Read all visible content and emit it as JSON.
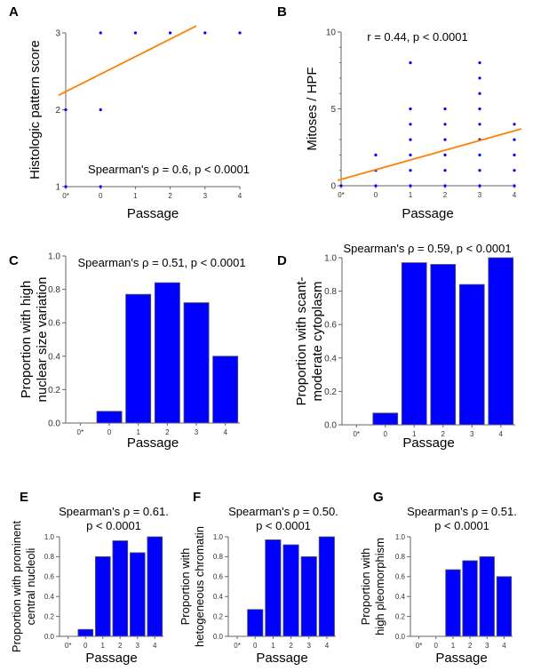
{
  "figure": {
    "colors": {
      "point": "#0000ff",
      "bar": "#0000ff",
      "bar_edge": "#555555",
      "fit": "#ff8000",
      "axis": "#666666"
    }
  },
  "chart_data": [
    {
      "panel": "A",
      "type": "scatter",
      "title": "",
      "xlabel": "Passage",
      "ylabel": "Histologic pattern score",
      "categories": [
        "0*",
        "0",
        "1",
        "2",
        "3",
        "4"
      ],
      "yticks": [
        "1",
        "2",
        "3"
      ],
      "ylim": [
        1,
        3
      ],
      "annotation": "Spearman's ρ = 0.6, p < 0.0001",
      "points": [
        {
          "x": "0*",
          "y": 1
        },
        {
          "x": "0*",
          "y": 2
        },
        {
          "x": "0",
          "y": 1
        },
        {
          "x": "0",
          "y": 2
        },
        {
          "x": "0",
          "y": 3
        },
        {
          "x": "1",
          "y": 3
        },
        {
          "x": "2",
          "y": 3
        },
        {
          "x": "3",
          "y": 3
        },
        {
          "x": "4",
          "y": 3
        }
      ],
      "fit_line": {
        "x0": -0.2,
        "y0": 2.19,
        "x1": 3.75,
        "y1": 3.09
      }
    },
    {
      "panel": "B",
      "type": "scatter",
      "title": "",
      "xlabel": "Passage",
      "ylabel": "Mitoses / HPF",
      "categories": [
        "0*",
        "0",
        "1",
        "2",
        "3",
        "4"
      ],
      "yticks": [
        "0",
        "5",
        "10"
      ],
      "ylim": [
        0,
        10
      ],
      "annotation": "r = 0.44, p < 0.0001",
      "points": [
        {
          "x": "0*",
          "y": 0
        },
        {
          "x": "0",
          "y": 0
        },
        {
          "x": "0",
          "y": 1
        },
        {
          "x": "0",
          "y": 2
        },
        {
          "x": "1",
          "y": 0
        },
        {
          "x": "1",
          "y": 1
        },
        {
          "x": "1",
          "y": 2
        },
        {
          "x": "1",
          "y": 3
        },
        {
          "x": "1",
          "y": 4
        },
        {
          "x": "1",
          "y": 5
        },
        {
          "x": "1",
          "y": 8
        },
        {
          "x": "2",
          "y": 0
        },
        {
          "x": "2",
          "y": 1
        },
        {
          "x": "2",
          "y": 2
        },
        {
          "x": "2",
          "y": 3
        },
        {
          "x": "2",
          "y": 4
        },
        {
          "x": "2",
          "y": 5
        },
        {
          "x": "3",
          "y": 0
        },
        {
          "x": "3",
          "y": 1
        },
        {
          "x": "3",
          "y": 2
        },
        {
          "x": "3",
          "y": 3
        },
        {
          "x": "3",
          "y": 4
        },
        {
          "x": "3",
          "y": 5
        },
        {
          "x": "3",
          "y": 6
        },
        {
          "x": "3",
          "y": 7
        },
        {
          "x": "3",
          "y": 8
        },
        {
          "x": "4",
          "y": 0
        },
        {
          "x": "4",
          "y": 1
        },
        {
          "x": "4",
          "y": 2
        },
        {
          "x": "4",
          "y": 3
        },
        {
          "x": "4",
          "y": 4
        }
      ],
      "fit_line": {
        "x0": -0.1,
        "y0": 0.35,
        "x1": 5.2,
        "y1": 3.7
      }
    },
    {
      "panel": "C",
      "type": "bar",
      "title": "",
      "xlabel": "Passage",
      "ylabel": [
        "Proportion with high",
        "nuclear size variation"
      ],
      "categories": [
        "0*",
        "0",
        "1",
        "2",
        "3",
        "4"
      ],
      "values": [
        0,
        0.07,
        0.77,
        0.84,
        0.72,
        0.4
      ],
      "yticks": [
        "0.0",
        "0.2",
        "0.4",
        "0.6",
        "0.8",
        "1.0"
      ],
      "ylim": [
        0,
        1
      ],
      "annotation": [
        "Spearman's ρ = 0.51, p < 0.0001"
      ]
    },
    {
      "panel": "D",
      "type": "bar",
      "title": "",
      "xlabel": "Passage",
      "ylabel": [
        "Proportion with scant-",
        "moderate cytoplasm"
      ],
      "categories": [
        "0*",
        "0",
        "1",
        "2",
        "3",
        "4"
      ],
      "values": [
        0,
        0.07,
        0.97,
        0.96,
        0.84,
        1.0
      ],
      "yticks": [
        "0.0",
        "0.2",
        "0.4",
        "0.6",
        "0.8",
        "1.0"
      ],
      "ylim": [
        0,
        1
      ],
      "annotation": [
        "Spearman's ρ = 0.59, p < 0.0001"
      ]
    },
    {
      "panel": "E",
      "type": "bar",
      "title": "",
      "xlabel": "Passage",
      "ylabel": [
        "Proportion with prominent",
        "central nucleoli"
      ],
      "categories": [
        "0*",
        "0",
        "1",
        "2",
        "3",
        "4"
      ],
      "values": [
        0,
        0.07,
        0.8,
        0.96,
        0.84,
        1.0
      ],
      "yticks": [
        "0.0",
        "0.2",
        "0.4",
        "0.6",
        "0.8",
        "1.0"
      ],
      "ylim": [
        0,
        1
      ],
      "annotation": [
        "Spearman's ρ = 0.61.",
        "p < 0.0001"
      ]
    },
    {
      "panel": "F",
      "type": "bar",
      "title": "",
      "xlabel": "Passage",
      "ylabel": [
        "Proportion with",
        "hetogeneous chromatin"
      ],
      "categories": [
        "0*",
        "0",
        "1",
        "2",
        "3",
        "4"
      ],
      "values": [
        0,
        0.27,
        0.97,
        0.92,
        0.8,
        1.0
      ],
      "yticks": [
        "0.0",
        "0.2",
        "0.4",
        "0.6",
        "0.8",
        "1.0"
      ],
      "ylim": [
        0,
        1
      ],
      "annotation": [
        "Spearman's ρ = 0.50.",
        "p < 0.0001"
      ]
    },
    {
      "panel": "G",
      "type": "bar",
      "title": "",
      "xlabel": "Passage",
      "ylabel": [
        "Proportion with",
        "high pleomorphism"
      ],
      "categories": [
        "0*",
        "0",
        "1",
        "2",
        "3",
        "4"
      ],
      "values": [
        0,
        0,
        0.67,
        0.76,
        0.8,
        0.6
      ],
      "yticks": [
        "0.0",
        "0.2",
        "0.4",
        "0.6",
        "0.8",
        "1.0"
      ],
      "ylim": [
        0,
        1
      ],
      "annotation": [
        "Spearman's ρ = 0.51.",
        "p < 0.0001"
      ]
    }
  ]
}
